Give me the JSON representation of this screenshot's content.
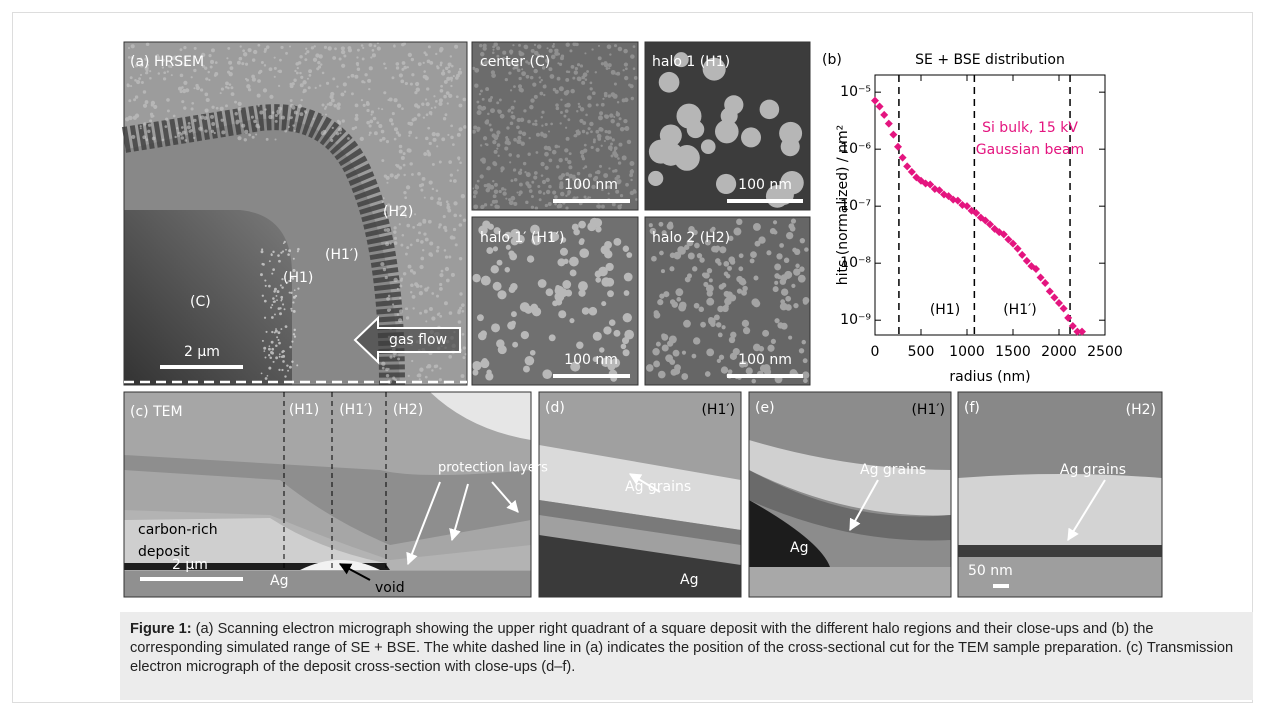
{
  "panels": [
    {
      "label": "(a) HRSEM",
      "annotations": [
        "(C)",
        "(H1)",
        "(H1′)",
        "(H2)",
        "gas flow"
      ],
      "scale_bar": "2 µm"
    },
    {
      "label": "center (C)",
      "scale_bar": "100 nm"
    },
    {
      "label": "halo 1 (H1)",
      "scale_bar": "100 nm"
    },
    {
      "label": "halo 1′ (H1′)",
      "scale_bar": "100 nm"
    },
    {
      "label": "halo 2 (H2)",
      "scale_bar": "100 nm"
    },
    {
      "label": "(c) TEM",
      "annotations": [
        "(H1)",
        "(H1′)",
        "(H2)",
        "protection layers",
        "carbon-rich",
        "deposit",
        "Ag",
        "void"
      ],
      "scale_bar": "2 µm"
    },
    {
      "label": "(d)",
      "annotations": [
        "(H1′)",
        "Ag grains",
        "Ag"
      ]
    },
    {
      "label": "(e)",
      "annotations": [
        "(H1′)",
        "Ag grains",
        "Ag"
      ]
    },
    {
      "label": "(f)",
      "annotations": [
        "(H2)",
        "Ag grains"
      ],
      "scale_bar": "50 nm"
    }
  ],
  "chart_data": {
    "type": "scatter",
    "panel_label": "(b)",
    "title": "SE + BSE distribution",
    "x_label": "radius (nm)",
    "y_label": "hits (normalized) / nm²",
    "log_y": true,
    "annotations": [
      "Si bulk, 15 kV",
      "Gaussian beam"
    ],
    "vlines": [
      260,
      1080,
      2120
    ],
    "region_labels": [
      "(H1)",
      "(H1′)"
    ],
    "xlim": [
      0,
      2500
    ],
    "xticks": [
      0,
      500,
      1000,
      1500,
      2000,
      2500
    ],
    "ylim": [
      5.5e-10,
      2e-05
    ],
    "yticks": [
      {
        "value": 1e-09,
        "label": "10⁻⁹"
      },
      {
        "value": 1e-08,
        "label": "10⁻⁸"
      },
      {
        "value": 1e-07,
        "label": "10⁻⁷"
      },
      {
        "value": 1e-06,
        "label": "10⁻⁶"
      },
      {
        "value": 1e-05,
        "label": "10⁻⁵"
      }
    ],
    "x": [
      0,
      50,
      100,
      150,
      200,
      250,
      300,
      350,
      400,
      450,
      500,
      550,
      600,
      650,
      700,
      750,
      800,
      850,
      900,
      950,
      1000,
      1050,
      1100,
      1150,
      1200,
      1250,
      1300,
      1350,
      1400,
      1450,
      1500,
      1550,
      1600,
      1650,
      1700,
      1750,
      1800,
      1850,
      1900,
      1950,
      2000,
      2050,
      2100,
      2150,
      2200,
      2250
    ],
    "series": [
      {
        "color": "#e4157f",
        "values": [
          7.1e-06,
          5.6e-06,
          4e-06,
          2.8e-06,
          1.8e-06,
          1.1e-06,
          7.1e-07,
          5e-07,
          4e-07,
          3.2e-07,
          2.8e-07,
          2.5e-07,
          2.4e-07,
          2e-07,
          1.9e-07,
          1.6e-07,
          1.5e-07,
          1.3e-07,
          1.25e-07,
          1.05e-07,
          1e-07,
          8.3e-08,
          7.6e-08,
          6.3e-08,
          5.6e-08,
          4.8e-08,
          4e-08,
          3.5e-08,
          3.2e-08,
          2.6e-08,
          2.2e-08,
          1.8e-08,
          1.4e-08,
          1.1e-08,
          8.9e-09,
          7.9e-09,
          5.6e-09,
          4.5e-09,
          3.2e-09,
          2.5e-09,
          2e-09,
          1.6e-09,
          1.1e-09,
          7.9e-10,
          6.3e-10,
          6.3e-10
        ]
      }
    ]
  },
  "caption": {
    "label": "Figure 1:",
    "text": " (a) Scanning electron micrograph showing the upper right quadrant of a square deposit with the different halo regions and their close-ups and (b) the corresponding simulated range of SE + BSE. The white dashed line in (a) indicates the position of the cross-sectional cut for the TEM sample preparation. (c) Transmission electron micrograph of the deposit cross-section with close-ups (d–f)."
  }
}
